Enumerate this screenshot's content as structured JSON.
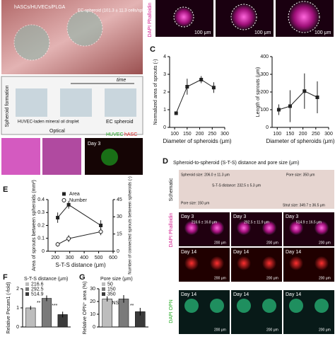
{
  "figure": {
    "panel_labels": [
      "C",
      "D",
      "E",
      "F",
      "G"
    ],
    "a_title": "hASCs/HUVECs/PLGA",
    "a_spheroid": "EC spheroid (101.3 ± 11.3 cells/spheroid)",
    "b_formation": "Spheroid formation",
    "b_time": "time",
    "b_droplet": "HUVEC-laden mineral oil droplet",
    "b_ec": "EC spheroid",
    "b_optical": "Optical",
    "b_huvec": "HUVEC",
    "b_hasc": "hASC",
    "b_day3": "Day 3",
    "top_stain": "DAPI Phalloidin",
    "top_scales": [
      "100 μm",
      "100 μm",
      "100 μm"
    ],
    "d_title": "Spheroid-to-spheroid (S-T-S) distance and pore size (μm)",
    "d_schematic": "Schematic",
    "d_spheroid_size": "Spheroid size: 206.0 ± 11.3 μm",
    "d_sts": "S-T-S distance: 232.5 ± 5.3 μm",
    "d_pore_small": "Pore size: 150 μm",
    "d_pore": "Pore size: 350 μm",
    "d_strut": "Strut size: 349.7 ± 36.5 μm",
    "d_distances": [
      "216.6 ± 16.8 μm",
      "292.5 ± 11.9 μm",
      "514.9 ± 16.5 μm"
    ],
    "d_day3": "Day 3",
    "d_day14": "Day 14",
    "d_phalloidin": "DAPI Phalloidin",
    "d_opn": "DAPI OPN",
    "d_scale": "200 μm"
  },
  "chart_data": [
    {
      "type": "line",
      "xlabel": "Diameter of spheroids (μm)",
      "ylabel": "Normalized area of sprouts (-)",
      "x": [
        106,
        150,
        206,
        256
      ],
      "xlim": [
        80,
        300
      ],
      "xticks": [
        100,
        150,
        200,
        250,
        300
      ],
      "ylim": [
        0,
        4
      ],
      "yticks": [
        0,
        1,
        2,
        3,
        4
      ],
      "series": [
        {
          "values": [
            0.8,
            2.3,
            2.7,
            2.25
          ],
          "errors": [
            0.1,
            0.45,
            0.2,
            0.3
          ],
          "color": "#222"
        }
      ]
    },
    {
      "type": "line",
      "xlabel": "Diameter of spheroids (μm)",
      "ylabel": "Length of sprouts (μm)",
      "x": [
        106,
        150,
        206,
        256
      ],
      "xlim": [
        80,
        300
      ],
      "xticks": [
        100,
        150,
        200,
        250,
        300
      ],
      "ylim": [
        0,
        400
      ],
      "yticks": [
        0,
        100,
        200,
        300,
        400
      ],
      "series": [
        {
          "values": [
            100,
            120,
            205,
            170
          ],
          "errors": [
            30,
            90,
            100,
            90
          ],
          "color": "#222"
        }
      ]
    },
    {
      "type": "line",
      "xlabel": "S-T-S distance (μm)",
      "ylabel": "Area of sprouts between spheroids (mm²)",
      "y2label": "Number of connected sprouts between spheroids (-)",
      "x": [
        216.6,
        292.5,
        514.9
      ],
      "xlim": [
        150,
        600
      ],
      "xticks": [
        200,
        300,
        400,
        500,
        600
      ],
      "ylim": [
        0,
        0.4
      ],
      "yticks": [
        0,
        0.1,
        0.2,
        0.3,
        0.4
      ],
      "y2lim": [
        0,
        45
      ],
      "y2ticks": [
        0,
        15,
        30,
        45
      ],
      "series": [
        {
          "name": "Area",
          "values": [
            0.26,
            0.36,
            0.2
          ],
          "errors": [
            0.04,
            0.03,
            0.04
          ],
          "color": "#222"
        },
        {
          "name": "Number",
          "axis": "y2",
          "values": [
            6,
            11,
            17
          ],
          "errors": [
            2,
            3,
            3
          ],
          "color": "#222"
        }
      ]
    },
    {
      "type": "bar",
      "ylabel": "Relative Pecam1 (-fold)",
      "legend_title": "S-T-S distance (μm)",
      "categories": [
        "216.6",
        "292.5",
        "514.9"
      ],
      "values": [
        1.0,
        1.5,
        0.65
      ],
      "errors": [
        0.1,
        0.15,
        0.15
      ],
      "colors": [
        "#bdbdbd",
        "#7a7a7a",
        "#3a3a3a"
      ],
      "ylim": [
        0,
        2
      ],
      "yticks": [
        0,
        1,
        2
      ],
      "annotations": [
        "**",
        "***"
      ]
    },
    {
      "type": "bar",
      "ylabel": "Relative OPN⁺ area (%)",
      "legend_title": "Pore size (μm)",
      "categories": [
        "50",
        "150",
        "350"
      ],
      "values": [
        22,
        22,
        12
      ],
      "errors": [
        2,
        3,
        3
      ],
      "colors": [
        "#bdbdbd",
        "#7a7a7a",
        "#3a3a3a"
      ],
      "ylim": [
        0,
        30
      ],
      "yticks": [
        0,
        10,
        20,
        30
      ],
      "annotations": [
        "NS",
        "**"
      ]
    }
  ]
}
